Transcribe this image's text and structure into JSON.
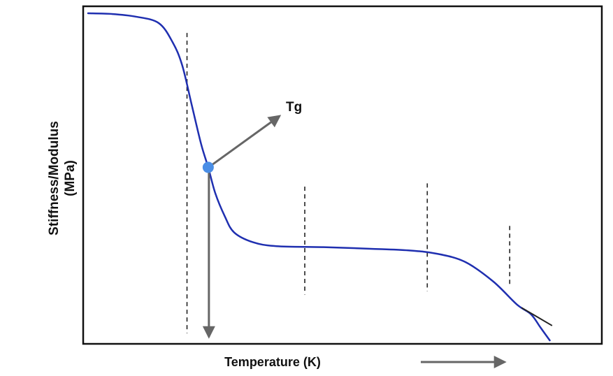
{
  "chart_data": {
    "type": "line",
    "title": "",
    "xlabel": "Temperature (K)",
    "ylabel": "Stiffness/Modulus (MPa)",
    "x_ticks_shown": false,
    "y_ticks_shown": false,
    "grid": false,
    "legend": "none",
    "series": [
      {
        "color": "#1f2fb0",
        "points": [
          [
            0.0,
            1.0
          ],
          [
            0.05,
            0.998
          ],
          [
            0.1,
            0.99
          ],
          [
            0.15,
            0.97
          ],
          [
            0.18,
            0.91
          ],
          [
            0.2,
            0.84
          ],
          [
            0.22,
            0.72
          ],
          [
            0.24,
            0.6
          ],
          [
            0.255,
            0.529
          ],
          [
            0.27,
            0.45
          ],
          [
            0.29,
            0.38
          ],
          [
            0.31,
            0.33
          ],
          [
            0.35,
            0.3
          ],
          [
            0.4,
            0.288
          ],
          [
            0.5,
            0.285
          ],
          [
            0.6,
            0.28
          ],
          [
            0.68,
            0.275
          ],
          [
            0.74,
            0.265
          ],
          [
            0.8,
            0.24
          ],
          [
            0.86,
            0.18
          ],
          [
            0.91,
            0.11
          ],
          [
            0.94,
            0.08
          ],
          [
            0.96,
            0.04
          ],
          [
            0.98,
            0.0
          ]
        ]
      }
    ],
    "transition_markers_x": [
      0.21,
      0.46,
      0.72,
      0.895
    ],
    "annotations": [
      {
        "text": "Tg",
        "x": 0.255,
        "y": 0.529,
        "color": "#4a8ee6"
      }
    ],
    "colors": {
      "curve": "#1f2fb0",
      "curve_tail": "#222222",
      "tg_point": "#4a8ee6",
      "arrows": "#666666",
      "frame": "#111111",
      "dashes": "#222222"
    }
  }
}
